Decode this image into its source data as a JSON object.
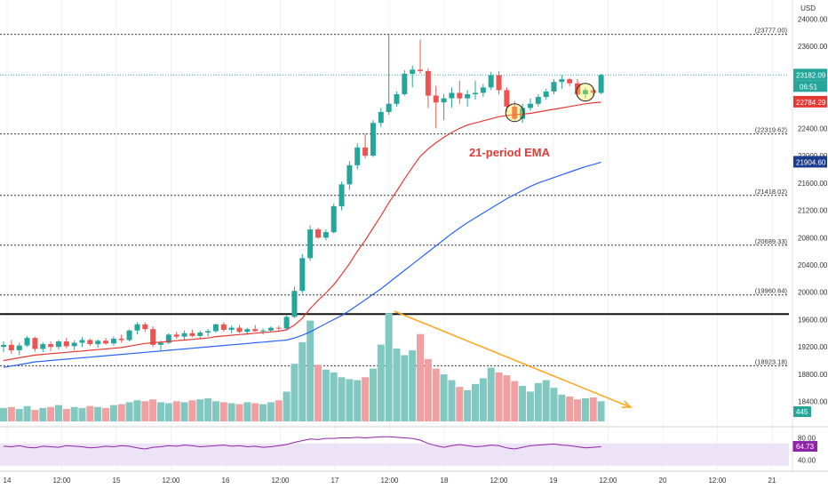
{
  "chart_data": {
    "type": "candlestick",
    "currency": "USD",
    "price_axis_ticks": [
      "24000.00",
      "23600.00",
      "23200.00",
      "22800.00",
      "22400.00",
      "22000.00",
      "21600.00",
      "21200.00",
      "20800.00",
      "20400.00",
      "20000.00",
      "19600.00",
      "19200.00",
      "18800.00",
      "18400.00"
    ],
    "price_range": [
      18030,
      24150
    ],
    "time_axis_labels": [
      {
        "label": "14",
        "pos": 0
      },
      {
        "label": "12:00",
        "pos": 2
      },
      {
        "label": "15",
        "pos": 4
      },
      {
        "label": "12:00",
        "pos": 6
      },
      {
        "label": "16",
        "pos": 8
      },
      {
        "label": "12:00",
        "pos": 10
      },
      {
        "label": "17",
        "pos": 12
      },
      {
        "label": "12:00",
        "pos": 14
      },
      {
        "label": "18",
        "pos": 16
      },
      {
        "label": "12:00",
        "pos": 18
      },
      {
        "label": "19",
        "pos": 20
      },
      {
        "label": "12:00",
        "pos": 22
      },
      {
        "label": "20",
        "pos": 24
      },
      {
        "label": "12:00",
        "pos": 26
      },
      {
        "label": "21",
        "pos": 28
      }
    ],
    "time_per_label_step_hours": 12,
    "candles": [
      [
        19200,
        19280,
        19120,
        19230
      ],
      [
        19230,
        19300,
        19100,
        19150
      ],
      [
        19150,
        19260,
        19080,
        19220
      ],
      [
        19220,
        19360,
        19200,
        19330
      ],
      [
        19330,
        19350,
        19130,
        19170
      ],
      [
        19170,
        19270,
        19120,
        19240
      ],
      [
        19240,
        19280,
        19140,
        19200
      ],
      [
        19200,
        19300,
        19160,
        19280
      ],
      [
        19280,
        19330,
        19180,
        19210
      ],
      [
        19210,
        19300,
        19150,
        19260
      ],
      [
        19260,
        19340,
        19200,
        19300
      ],
      [
        19300,
        19320,
        19210,
        19240
      ],
      [
        19240,
        19310,
        19190,
        19290
      ],
      [
        19290,
        19330,
        19230,
        19250
      ],
      [
        19250,
        19350,
        19220,
        19320
      ],
      [
        19320,
        19380,
        19260,
        19300
      ],
      [
        19300,
        19460,
        19280,
        19440
      ],
      [
        19440,
        19560,
        19380,
        19530
      ],
      [
        19530,
        19560,
        19420,
        19460
      ],
      [
        19460,
        19500,
        19200,
        19230
      ],
      [
        19230,
        19290,
        19140,
        19260
      ],
      [
        19260,
        19400,
        19240,
        19380
      ],
      [
        19380,
        19420,
        19320,
        19350
      ],
      [
        19350,
        19440,
        19300,
        19400
      ],
      [
        19400,
        19450,
        19340,
        19360
      ],
      [
        19360,
        19440,
        19310,
        19410
      ],
      [
        19410,
        19460,
        19350,
        19430
      ],
      [
        19430,
        19540,
        19410,
        19530
      ],
      [
        19530,
        19560,
        19420,
        19450
      ],
      [
        19450,
        19510,
        19400,
        19480
      ],
      [
        19480,
        19520,
        19400,
        19420
      ],
      [
        19420,
        19480,
        19380,
        19460
      ],
      [
        19460,
        19520,
        19420,
        19430
      ],
      [
        19430,
        19470,
        19380,
        19440
      ],
      [
        19440,
        19500,
        19420,
        19480
      ],
      [
        19480,
        19510,
        19440,
        19470
      ],
      [
        19470,
        19660,
        19450,
        19640
      ],
      [
        19640,
        20080,
        19620,
        20020
      ],
      [
        20020,
        20560,
        19980,
        20500
      ],
      [
        20500,
        20980,
        20460,
        20920
      ],
      [
        20920,
        20950,
        20780,
        20800
      ],
      [
        20800,
        20920,
        20760,
        20880
      ],
      [
        20880,
        21300,
        20860,
        21260
      ],
      [
        21260,
        21620,
        21200,
        21580
      ],
      [
        21580,
        21920,
        21500,
        21860
      ],
      [
        21860,
        22180,
        21800,
        22120
      ],
      [
        22120,
        22320,
        21960,
        22000
      ],
      [
        22000,
        22520,
        21980,
        22480
      ],
      [
        22480,
        22700,
        22420,
        22640
      ],
      [
        22640,
        23777,
        22600,
        22760
      ],
      [
        22760,
        22940,
        22720,
        22900
      ],
      [
        22900,
        23250,
        22880,
        23200
      ],
      [
        23200,
        23320,
        23000,
        23260
      ],
      [
        23260,
        23700,
        23200,
        23240
      ],
      [
        23240,
        23280,
        22700,
        22880
      ],
      [
        22880,
        23020,
        22400,
        22780
      ],
      [
        22780,
        22900,
        22520,
        22840
      ],
      [
        22840,
        23000,
        22700,
        22920
      ],
      [
        22920,
        23100,
        22760,
        22840
      ],
      [
        22840,
        22960,
        22720,
        22900
      ],
      [
        22900,
        23100,
        22820,
        22920
      ],
      [
        22920,
        23050,
        22860,
        23000
      ],
      [
        23000,
        23230,
        22960,
        23180
      ],
      [
        23180,
        23240,
        22900,
        22960
      ],
      [
        22960,
        23000,
        22640,
        22720
      ],
      [
        22720,
        22800,
        22520,
        22540
      ],
      [
        22540,
        22760,
        22480,
        22700
      ],
      [
        22700,
        22840,
        22660,
        22760
      ],
      [
        22760,
        22900,
        22720,
        22860
      ],
      [
        22860,
        22980,
        22820,
        22940
      ],
      [
        22940,
        23120,
        22900,
        23080
      ],
      [
        23080,
        23180,
        22980,
        23120
      ],
      [
        23120,
        23140,
        23020,
        23060
      ],
      [
        23060,
        23120,
        22860,
        22900
      ],
      [
        22900,
        23000,
        22840,
        22960
      ],
      [
        22960,
        23000,
        22880,
        22920
      ],
      [
        22920,
        23200,
        22900,
        23182.09
      ]
    ],
    "volume_values": [
      28,
      30,
      26,
      32,
      24,
      28,
      30,
      34,
      26,
      30,
      28,
      32,
      30,
      28,
      34,
      36,
      40,
      44,
      42,
      46,
      40,
      38,
      42,
      40,
      44,
      46,
      48,
      42,
      40,
      38,
      36,
      40,
      38,
      36,
      40,
      44,
      62,
      120,
      165,
      210,
      118,
      108,
      102,
      92,
      88,
      86,
      92,
      110,
      160,
      225,
      152,
      138,
      148,
      182,
      130,
      110,
      98,
      86,
      72,
      65,
      78,
      90,
      112,
      102,
      96,
      84,
      74,
      62,
      80,
      86,
      70,
      56,
      52,
      46,
      48,
      50,
      42
    ],
    "volume_current": "445",
    "ema21": [
      19000,
      19020,
      19040,
      19060,
      19080,
      19090,
      19100,
      19110,
      19120,
      19130,
      19140,
      19150,
      19160,
      19170,
      19180,
      19190,
      19210,
      19230,
      19250,
      19260,
      19270,
      19280,
      19290,
      19300,
      19310,
      19320,
      19330,
      19350,
      19360,
      19370,
      19380,
      19390,
      19400,
      19410,
      19420,
      19430,
      19450,
      19520,
      19620,
      19760,
      19880,
      19990,
      20110,
      20260,
      20420,
      20600,
      20760,
      20940,
      21120,
      21310,
      21480,
      21660,
      21830,
      21990,
      22100,
      22190,
      22270,
      22340,
      22400,
      22450,
      22480,
      22510,
      22540,
      22570,
      22590,
      22600,
      22610,
      22620,
      22640,
      22660,
      22680,
      22700,
      22720,
      22740,
      22760,
      22775,
      22784.29
    ],
    "ema_slow": [
      18900,
      18920,
      18940,
      18960,
      18980,
      18990,
      19000,
      19010,
      19020,
      19030,
      19040,
      19050,
      19060,
      19070,
      19080,
      19090,
      19100,
      19110,
      19120,
      19130,
      19140,
      19150,
      19160,
      19170,
      19180,
      19190,
      19200,
      19210,
      19220,
      19230,
      19240,
      19250,
      19260,
      19270,
      19280,
      19290,
      19300,
      19330,
      19370,
      19420,
      19480,
      19540,
      19600,
      19660,
      19730,
      19810,
      19890,
      19970,
      20050,
      20140,
      20230,
      20320,
      20410,
      20500,
      20590,
      20680,
      20770,
      20860,
      20940,
      21020,
      21090,
      21160,
      21230,
      21300,
      21370,
      21430,
      21490,
      21550,
      21600,
      21640,
      21680,
      21720,
      21760,
      21800,
      21840,
      21870,
      21904.6
    ],
    "ema_slow_label": "21904.60",
    "ema21_label": "22784.29",
    "last_price": "23182.09",
    "countdown": "06:51",
    "horizontal_levels": [
      23777,
      22319.62,
      21418.02,
      20689.33,
      19960.64,
      18923.18
    ],
    "horizontal_level_labels": [
      "(23777.00)",
      "(22319.62)",
      "(21418.02)",
      "(20689.33)",
      "(19960.64)",
      "(18923.18)"
    ],
    "support_line": 19680,
    "annotation": "21-period EMA",
    "highlighted_candles": [
      65,
      74
    ],
    "volume_trend_arrow": {
      "from_index": 49,
      "to_index": 82
    },
    "rsi_values": [
      65,
      64,
      66,
      63,
      62,
      65,
      64,
      63,
      66,
      65,
      64,
      62,
      63,
      65,
      64,
      66,
      65,
      62,
      60,
      63,
      64,
      66,
      65,
      67,
      66,
      64,
      65,
      66,
      67,
      65,
      66,
      64,
      65,
      63,
      64,
      66,
      68,
      72,
      75,
      78,
      77,
      79,
      79,
      80,
      80,
      81,
      80,
      81,
      82,
      82,
      81,
      80,
      79,
      76,
      70,
      66,
      63,
      66,
      68,
      66,
      64,
      65,
      67,
      66,
      62,
      60,
      63,
      66,
      67,
      68,
      69,
      67,
      66,
      64,
      62,
      63,
      64
    ],
    "rsi_current": "64.73",
    "rsi_axis_ticks": [
      "80.00",
      "40.00"
    ],
    "rsi_range": [
      20,
      100
    ],
    "colors": {
      "up": "#26a69a",
      "down": "#ef5350",
      "ema21": "#e53935",
      "ema_slow": "#2962ff",
      "rsi": "#8e24aa",
      "arrow": "#ffa726",
      "volume_up": "#80c8c0",
      "volume_down": "#f0a0a0"
    }
  }
}
